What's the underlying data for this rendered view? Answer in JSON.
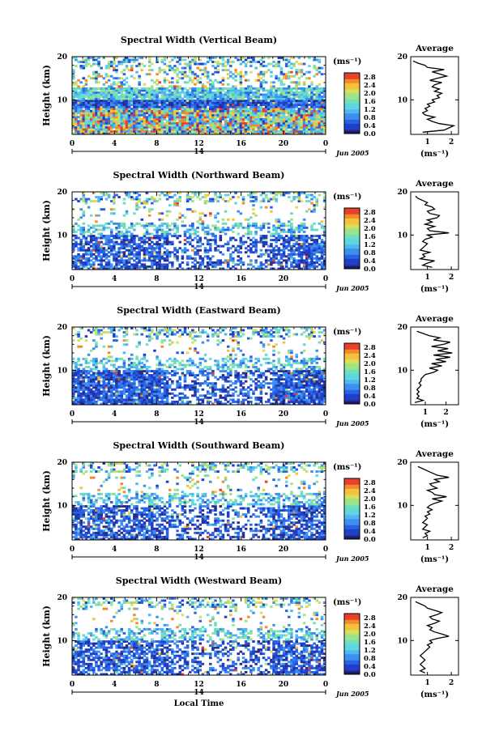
{
  "chart_data": [
    {
      "type": "heatmap",
      "title": "Spectral Width (Vertical Beam)",
      "ylabel": "Height (km)",
      "x_ticks": [
        "0",
        "4",
        "8",
        "12",
        "16",
        "20",
        "0"
      ],
      "y_ticks": [
        "20",
        "10"
      ],
      "xlim": [
        0,
        24
      ],
      "ylim": [
        2,
        20
      ],
      "colorbar": {
        "unit": "(ms⁻¹)",
        "ticks": [
          "2.8",
          "2.4",
          "2.0",
          "1.6",
          "1.2",
          "0.8",
          "0.4",
          "0.0"
        ],
        "range": [
          0,
          3.0
        ]
      },
      "date_marker": "14",
      "date_label": "Jun 2005",
      "average": {
        "title": "Average",
        "unit": "(ms⁻¹)",
        "x_ticks": [
          "1",
          "2"
        ],
        "y_ticks": [
          "20",
          "10"
        ],
        "xlim": [
          0.3,
          2.3
        ],
        "heights": [
          2.5,
          3,
          3.5,
          4,
          4.5,
          5,
          5.5,
          6,
          6.5,
          7,
          7.5,
          8,
          8.5,
          9,
          9.5,
          10,
          10.5,
          11,
          11.5,
          12,
          12.5,
          13,
          13.5,
          14,
          14.5,
          15,
          15.5,
          16,
          16.5,
          17,
          17.5,
          18,
          18.5,
          19
        ],
        "values": [
          0.8,
          1.7,
          1.9,
          2.1,
          1.5,
          1.2,
          1.0,
          1.3,
          0.9,
          0.8,
          1.0,
          0.9,
          1.1,
          1.0,
          1.3,
          1.2,
          1.5,
          1.4,
          1.6,
          1.3,
          1.5,
          1.2,
          1.3,
          1.6,
          1.1,
          1.4,
          1.8,
          1.5,
          1.2,
          1.7,
          1.0,
          0.9,
          0.6,
          0.4
        ]
      }
    },
    {
      "type": "heatmap",
      "title": "Spectral Width (Northward Beam)",
      "ylabel": "Height (km)",
      "x_ticks": [
        "0",
        "4",
        "8",
        "12",
        "16",
        "20",
        "0"
      ],
      "y_ticks": [
        "20",
        "10"
      ],
      "xlim": [
        0,
        24
      ],
      "ylim": [
        2,
        20
      ],
      "colorbar": {
        "unit": "(ms⁻¹)",
        "ticks": [
          "2.8",
          "2.4",
          "2.0",
          "1.6",
          "1.2",
          "0.8",
          "0.4",
          "0.0"
        ],
        "range": [
          0,
          3.0
        ]
      },
      "date_marker": "14",
      "date_label": "Jun 2005",
      "average": {
        "title": "Average",
        "unit": "(ms⁻¹)",
        "x_ticks": [
          "1",
          "2"
        ],
        "y_ticks": [
          "20",
          "10"
        ],
        "xlim": [
          0.3,
          2.3
        ],
        "heights": [
          2.5,
          3,
          3.5,
          4,
          4.5,
          5,
          5.5,
          6,
          6.5,
          7,
          7.5,
          8,
          8.5,
          9,
          9.5,
          10,
          10.5,
          11,
          11.5,
          12,
          12.5,
          13,
          13.5,
          14,
          14.5,
          15,
          15.5,
          16,
          16.5,
          17,
          17.5,
          18,
          18.5,
          19
        ],
        "values": [
          1.2,
          0.8,
          1.0,
          1.3,
          0.7,
          0.9,
          0.8,
          1.1,
          0.7,
          0.8,
          0.9,
          1.0,
          0.8,
          0.9,
          1.2,
          1.0,
          1.9,
          1.1,
          1.0,
          1.3,
          0.9,
          1.2,
          1.0,
          1.4,
          1.5,
          1.1,
          1.0,
          1.3,
          1.2,
          0.9,
          1.0,
          0.8,
          0.6,
          0.5
        ]
      }
    },
    {
      "type": "heatmap",
      "title": "Spectral Width (Eastward Beam)",
      "ylabel": "Height (km)",
      "x_ticks": [
        "0",
        "4",
        "8",
        "12",
        "16",
        "20",
        "0"
      ],
      "y_ticks": [
        "20",
        "10"
      ],
      "xlim": [
        0,
        24
      ],
      "ylim": [
        2,
        20
      ],
      "colorbar": {
        "unit": "(ms⁻¹)",
        "ticks": [
          "2.8",
          "2.4",
          "2.0",
          "1.6",
          "1.2",
          "0.8",
          "0.4",
          "0.0"
        ],
        "range": [
          0,
          3.0
        ]
      },
      "date_marker": "14",
      "date_label": "Jun 2005",
      "average": {
        "title": "Average",
        "unit": "(ms⁻¹)",
        "x_ticks": [
          "1",
          "2"
        ],
        "y_ticks": [
          "20",
          "10"
        ],
        "xlim": [
          0.3,
          2.6
        ],
        "heights": [
          2.5,
          3,
          3.5,
          4,
          4.5,
          5,
          5.5,
          6,
          6.5,
          7,
          7.5,
          8,
          8.5,
          9,
          9.5,
          10,
          10.5,
          11,
          11.5,
          12,
          12.5,
          13,
          13.5,
          14,
          14.5,
          15,
          15.5,
          16,
          16.5,
          17,
          17.5,
          18,
          18.5,
          19
        ],
        "values": [
          0.5,
          0.9,
          0.6,
          0.7,
          0.6,
          0.7,
          0.6,
          0.7,
          0.8,
          0.7,
          0.8,
          0.8,
          0.9,
          1.0,
          1.4,
          1.6,
          1.2,
          1.8,
          1.3,
          2.0,
          1.5,
          2.2,
          1.4,
          2.3,
          1.6,
          2.1,
          1.3,
          1.9,
          2.2,
          1.4,
          1.7,
          1.2,
          0.9,
          0.6
        ]
      }
    },
    {
      "type": "heatmap",
      "title": "Spectral Width (Southward Beam)",
      "ylabel": "Height (km)",
      "x_ticks": [
        "0",
        "4",
        "8",
        "12",
        "16",
        "20",
        "0"
      ],
      "y_ticks": [
        "20",
        "10"
      ],
      "xlim": [
        0,
        24
      ],
      "ylim": [
        2,
        20
      ],
      "colorbar": {
        "unit": "(ms⁻¹)",
        "ticks": [
          "2.8",
          "2.4",
          "2.0",
          "1.6",
          "1.2",
          "0.8",
          "0.4",
          "0.0"
        ],
        "range": [
          0,
          3.0
        ]
      },
      "date_marker": "14",
      "date_label": "Jun 2005",
      "average": {
        "title": "Average",
        "unit": "(ms⁻¹)",
        "x_ticks": [
          "1",
          "2"
        ],
        "y_ticks": [
          "20",
          "10"
        ],
        "xlim": [
          0.3,
          2.3
        ],
        "heights": [
          2.5,
          3,
          3.5,
          4,
          4.5,
          5,
          5.5,
          6,
          6.5,
          7,
          7.5,
          8,
          8.5,
          9,
          9.5,
          10,
          10.5,
          11,
          11.5,
          12,
          12.5,
          13,
          13.5,
          14,
          14.5,
          15,
          15.5,
          16,
          16.5,
          17,
          17.5,
          18,
          18.5,
          19
        ],
        "values": [
          0.8,
          1.0,
          0.9,
          1.1,
          0.8,
          0.9,
          1.0,
          0.8,
          0.9,
          1.0,
          0.9,
          1.1,
          1.0,
          1.2,
          1.0,
          1.1,
          1.3,
          1.6,
          1.2,
          1.8,
          1.3,
          1.2,
          1.0,
          1.4,
          1.2,
          1.1,
          1.5,
          1.3,
          1.9,
          1.4,
          1.2,
          1.0,
          0.8,
          0.6
        ]
      }
    },
    {
      "type": "heatmap",
      "title": "Spectral Width (Westward Beam)",
      "ylabel": "Height (km)",
      "x_ticks": [
        "0",
        "4",
        "8",
        "12",
        "16",
        "20",
        "0"
      ],
      "y_ticks": [
        "20",
        "10"
      ],
      "xlim": [
        0,
        24
      ],
      "ylim": [
        2,
        20
      ],
      "colorbar": {
        "unit": "(ms⁻¹)",
        "ticks": [
          "2.8",
          "2.4",
          "2.0",
          "1.6",
          "1.2",
          "0.8",
          "0.4",
          "0.0"
        ],
        "range": [
          0,
          3.0
        ]
      },
      "date_marker": "14",
      "date_label": "Jun 2005",
      "xlabel": "Local Time",
      "average": {
        "title": "Average",
        "unit": "(ms⁻¹)",
        "x_ticks": [
          "1",
          "2"
        ],
        "y_ticks": [
          "20",
          "10"
        ],
        "xlim": [
          0.3,
          2.3
        ],
        "heights": [
          2.5,
          3,
          3.5,
          4,
          4.5,
          5,
          5.5,
          6,
          6.5,
          7,
          7.5,
          8,
          8.5,
          9,
          9.5,
          10,
          10.5,
          11,
          11.5,
          12,
          12.5,
          13,
          13.5,
          14,
          14.5,
          15,
          15.5,
          16,
          16.5,
          17,
          17.5,
          18,
          18.5,
          19
        ],
        "values": [
          0.9,
          0.7,
          0.9,
          0.8,
          0.7,
          0.8,
          0.9,
          0.8,
          0.7,
          0.8,
          0.9,
          1.0,
          1.1,
          1.0,
          1.2,
          1.1,
          1.4,
          1.9,
          1.6,
          1.3,
          1.1,
          1.2,
          1.0,
          1.3,
          1.5,
          1.2,
          1.1,
          1.4,
          1.6,
          1.3,
          1.0,
          0.9,
          0.7,
          0.5
        ]
      }
    }
  ]
}
